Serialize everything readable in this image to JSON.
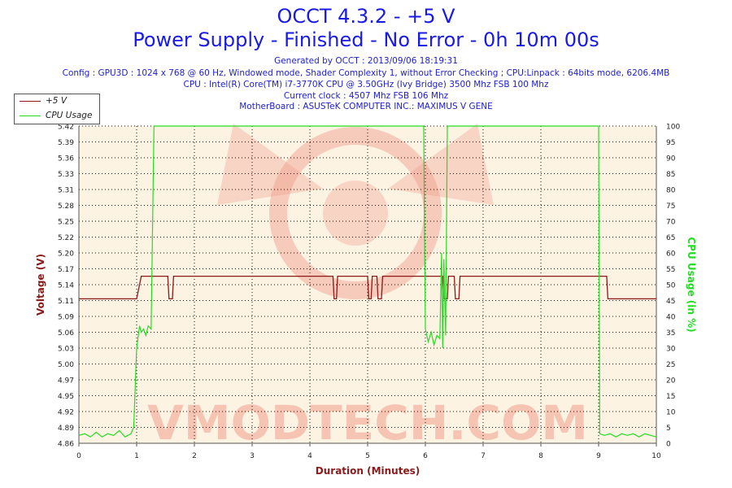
{
  "header": {
    "title": "OCCT 4.3.2 - +5 V",
    "subtitle": "Power Supply - Finished - No Error - 0h 10m 00s",
    "info_lines": [
      "Generated by OCCT : 2013/09/06 18:19:31",
      "Config : GPU3D : 1024 x 768 @ 60 Hz, Windowed mode, Shader Complexity 1, without Error Checking ; CPU:Linpack : 64bits mode, 6206.4MB",
      "CPU : Intel(R) Core(TM) i7-3770K CPU @ 3.50GHz (Ivy Bridge) 3500 Mhz FSB 100 Mhz",
      "Current clock : 4507 Mhz FSB 106 Mhz",
      "MotherBoard : ASUSTeK COMPUTER INC.: MAXIMUS V GENE"
    ]
  },
  "watermark": "VMODTECH.COM",
  "colors": {
    "title": "#1a1ae6",
    "voltage": "#8b1a1a",
    "cpu": "#22dd22",
    "plot_bg": "#fdf3e3",
    "grid": "#111111",
    "watermark": "#ee9c8a"
  },
  "chart_data": {
    "type": "line",
    "xlabel": "Duration (Minutes)",
    "ylabel": "Voltage (V)",
    "y2label": "CPU Usage (in %)",
    "xlim": [
      0,
      10
    ],
    "ylim": [
      4.86,
      5.42
    ],
    "y2lim": [
      0,
      100
    ],
    "x_ticks": [
      "0",
      "1",
      "2",
      "3",
      "4",
      "5",
      "6",
      "7",
      "8",
      "9",
      "10"
    ],
    "y_ticks": [
      "4.86",
      "4.89",
      "4.92",
      "4.95",
      "4.97",
      "5.00",
      "5.03",
      "5.06",
      "5.09",
      "5.11",
      "5.14",
      "5.17",
      "5.20",
      "5.22",
      "5.25",
      "5.28",
      "5.31",
      "5.33",
      "5.36",
      "5.39",
      "5.42"
    ],
    "y2_ticks": [
      "0",
      "5",
      "10",
      "15",
      "20",
      "25",
      "30",
      "35",
      "40",
      "45",
      "50",
      "55",
      "60",
      "65",
      "70",
      "75",
      "80",
      "85",
      "90",
      "95",
      "100"
    ],
    "grid": true,
    "legend_position": "top-left",
    "series": [
      {
        "name": "+5 V",
        "axis": "left",
        "x": [
          0,
          1.0,
          1.08,
          1.54,
          1.56,
          1.62,
          1.64,
          4.4,
          4.42,
          4.46,
          4.48,
          5.0,
          5.02,
          5.06,
          5.08,
          5.16,
          5.18,
          5.24,
          5.26,
          6.3,
          6.32,
          6.38,
          6.4,
          6.5,
          6.52,
          6.58,
          6.6,
          9.14,
          9.16,
          10
        ],
        "y": [
          5.115,
          5.115,
          5.155,
          5.155,
          5.115,
          5.115,
          5.155,
          5.155,
          5.115,
          5.115,
          5.155,
          5.155,
          5.115,
          5.115,
          5.155,
          5.155,
          5.115,
          5.115,
          5.155,
          5.155,
          5.115,
          5.115,
          5.155,
          5.155,
          5.115,
          5.115,
          5.155,
          5.155,
          5.115,
          5.115
        ]
      },
      {
        "name": "CPU Usage",
        "axis": "right",
        "x": [
          0,
          0.1,
          0.2,
          0.3,
          0.4,
          0.5,
          0.6,
          0.7,
          0.8,
          0.9,
          0.95,
          1.0,
          1.05,
          1.08,
          1.12,
          1.16,
          1.2,
          1.25,
          1.3,
          5.97,
          6.0,
          6.05,
          6.1,
          6.15,
          6.2,
          6.25,
          6.28,
          6.3,
          6.32,
          6.35,
          6.38,
          6.42,
          9.0,
          9.02,
          9.1,
          9.2,
          9.3,
          9.4,
          9.5,
          9.6,
          9.7,
          9.8,
          9.9,
          10
        ],
        "y": [
          2.5,
          3,
          2,
          3.5,
          2,
          3,
          2.5,
          4,
          2,
          3,
          5,
          30,
          37,
          35,
          36,
          34,
          37,
          36,
          100,
          100,
          36,
          32,
          35,
          31,
          34,
          33,
          60,
          30,
          58,
          34,
          100,
          100,
          100,
          3,
          2.5,
          3,
          2,
          3,
          2.5,
          3,
          2,
          3,
          2.5,
          2
        ]
      }
    ]
  }
}
